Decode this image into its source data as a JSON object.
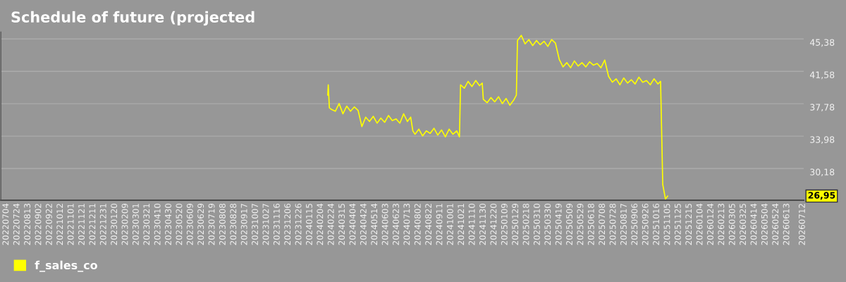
{
  "chart_data": {
    "type": "line",
    "title": "Schedule of future (projected",
    "xlim": [
      "2022-06-24",
      "2026-07-14"
    ],
    "ylim": [
      26.46,
      46.21
    ],
    "yticks": [
      {
        "value": 30.18,
        "label": "30,18"
      },
      {
        "value": 33.98,
        "label": "33,98"
      },
      {
        "value": 37.78,
        "label": "37,78"
      },
      {
        "value": 41.58,
        "label": "41,58"
      },
      {
        "value": 45.38,
        "label": "45,38"
      }
    ],
    "xticks": [
      {
        "value": "2022-07-04",
        "label": "20220704"
      },
      {
        "value": "2022-07-24",
        "label": "20220724"
      },
      {
        "value": "2022-08-13",
        "label": "20220813"
      },
      {
        "value": "2022-09-02",
        "label": "20220902"
      },
      {
        "value": "2022-09-22",
        "label": "20220922"
      },
      {
        "value": "2022-10-12",
        "label": "20221012"
      },
      {
        "value": "2022-11-01",
        "label": "20221101"
      },
      {
        "value": "2022-11-21",
        "label": "20221121"
      },
      {
        "value": "2022-12-11",
        "label": "20221211"
      },
      {
        "value": "2022-12-31",
        "label": "20221231"
      },
      {
        "value": "2023-01-20",
        "label": "20230120"
      },
      {
        "value": "2023-02-09",
        "label": "20230209"
      },
      {
        "value": "2023-03-01",
        "label": "20230301"
      },
      {
        "value": "2023-03-21",
        "label": "20230321"
      },
      {
        "value": "2023-04-10",
        "label": "20230410"
      },
      {
        "value": "2023-04-30",
        "label": "20230430"
      },
      {
        "value": "2023-05-20",
        "label": "20230520"
      },
      {
        "value": "2023-06-09",
        "label": "20230609"
      },
      {
        "value": "2023-06-29",
        "label": "20230629"
      },
      {
        "value": "2023-07-19",
        "label": "20230719"
      },
      {
        "value": "2023-08-08",
        "label": "20230808"
      },
      {
        "value": "2023-08-28",
        "label": "20230828"
      },
      {
        "value": "2023-09-17",
        "label": "20230917"
      },
      {
        "value": "2023-10-07",
        "label": "20231007"
      },
      {
        "value": "2023-10-27",
        "label": "20231027"
      },
      {
        "value": "2023-11-16",
        "label": "20231116"
      },
      {
        "value": "2023-12-06",
        "label": "20231206"
      },
      {
        "value": "2023-12-26",
        "label": "20231226"
      },
      {
        "value": "2024-01-15",
        "label": "20240115"
      },
      {
        "value": "2024-02-04",
        "label": "20240204"
      },
      {
        "value": "2024-02-24",
        "label": "20240224"
      },
      {
        "value": "2024-03-15",
        "label": "20240315"
      },
      {
        "value": "2024-04-04",
        "label": "20240404"
      },
      {
        "value": "2024-04-24",
        "label": "20240424"
      },
      {
        "value": "2024-05-14",
        "label": "20240514"
      },
      {
        "value": "2024-06-03",
        "label": "20240603"
      },
      {
        "value": "2024-06-23",
        "label": "20240623"
      },
      {
        "value": "2024-07-13",
        "label": "20240713"
      },
      {
        "value": "2024-08-02",
        "label": "20240802"
      },
      {
        "value": "2024-08-22",
        "label": "20240822"
      },
      {
        "value": "2024-09-11",
        "label": "20240911"
      },
      {
        "value": "2024-10-01",
        "label": "20241001"
      },
      {
        "value": "2024-10-21",
        "label": "20241021"
      },
      {
        "value": "2024-11-10",
        "label": "20241110"
      },
      {
        "value": "2024-11-30",
        "label": "20241130"
      },
      {
        "value": "2024-12-20",
        "label": "20241220"
      },
      {
        "value": "2025-01-09",
        "label": "20250109"
      },
      {
        "value": "2025-01-29",
        "label": "20250129"
      },
      {
        "value": "2025-02-18",
        "label": "20250218"
      },
      {
        "value": "2025-03-10",
        "label": "20250310"
      },
      {
        "value": "2025-03-30",
        "label": "20250330"
      },
      {
        "value": "2025-04-19",
        "label": "20250419"
      },
      {
        "value": "2025-05-09",
        "label": "20250509"
      },
      {
        "value": "2025-05-29",
        "label": "20250529"
      },
      {
        "value": "2025-06-18",
        "label": "20250618"
      },
      {
        "value": "2025-07-08",
        "label": "20250708"
      },
      {
        "value": "2025-07-28",
        "label": "20250728"
      },
      {
        "value": "2025-08-17",
        "label": "20250817"
      },
      {
        "value": "2025-09-06",
        "label": "20250906"
      },
      {
        "value": "2025-09-26",
        "label": "20250926"
      },
      {
        "value": "2025-10-16",
        "label": "20251016"
      },
      {
        "value": "2025-11-05",
        "label": "20251105"
      },
      {
        "value": "2025-11-25",
        "label": "20251125"
      },
      {
        "value": "2025-12-15",
        "label": "20251215"
      },
      {
        "value": "2026-01-04",
        "label": "20260104"
      },
      {
        "value": "2026-01-24",
        "label": "20260124"
      },
      {
        "value": "2026-02-13",
        "label": "20260213"
      },
      {
        "value": "2026-03-05",
        "label": "20260305"
      },
      {
        "value": "2026-03-25",
        "label": "20260325"
      },
      {
        "value": "2026-04-14",
        "label": "20260414"
      },
      {
        "value": "2026-05-04",
        "label": "20260504"
      },
      {
        "value": "2026-05-24",
        "label": "20260524"
      },
      {
        "value": "2026-06-13",
        "label": "20260613"
      },
      {
        "value": "2026-07-12",
        "label": "20260712"
      }
    ],
    "grid": "y",
    "legend": "bottom left",
    "annotations": [
      "26,95"
    ],
    "series": [
      {
        "name": "f_sales_co",
        "color": "#ffff00",
        "x": [
          "2024-02-17",
          "2024-02-18",
          "2024-02-20",
          "2024-02-24",
          "2024-03-02",
          "2024-03-09",
          "2024-03-16",
          "2024-03-23",
          "2024-03-30",
          "2024-04-06",
          "2024-04-13",
          "2024-04-20",
          "2024-04-27",
          "2024-05-04",
          "2024-05-11",
          "2024-05-18",
          "2024-05-25",
          "2024-06-01",
          "2024-06-08",
          "2024-06-15",
          "2024-06-22",
          "2024-06-29",
          "2024-07-06",
          "2024-07-13",
          "2024-07-19",
          "2024-07-23",
          "2024-07-27",
          "2024-08-03",
          "2024-08-10",
          "2024-08-17",
          "2024-08-24",
          "2024-08-31",
          "2024-09-07",
          "2024-09-14",
          "2024-09-21",
          "2024-09-28",
          "2024-10-05",
          "2024-10-12",
          "2024-10-17",
          "2024-10-19",
          "2024-10-26",
          "2024-11-02",
          "2024-11-09",
          "2024-11-16",
          "2024-11-23",
          "2024-11-28",
          "2024-11-30",
          "2024-12-07",
          "2024-12-14",
          "2024-12-21",
          "2024-12-28",
          "2025-01-04",
          "2025-01-11",
          "2025-01-18",
          "2025-01-25",
          "2025-01-30",
          "2025-02-01",
          "2025-02-08",
          "2025-02-15",
          "2025-02-22",
          "2025-03-01",
          "2025-03-08",
          "2025-03-15",
          "2025-03-22",
          "2025-03-29",
          "2025-04-05",
          "2025-04-12",
          "2025-04-19",
          "2025-04-26",
          "2025-05-03",
          "2025-05-10",
          "2025-05-17",
          "2025-05-24",
          "2025-05-31",
          "2025-06-07",
          "2025-06-14",
          "2025-06-21",
          "2025-06-28",
          "2025-07-05",
          "2025-07-12",
          "2025-07-19",
          "2025-07-26",
          "2025-08-02",
          "2025-08-09",
          "2025-08-16",
          "2025-08-23",
          "2025-08-30",
          "2025-09-06",
          "2025-09-13",
          "2025-09-20",
          "2025-09-27",
          "2025-10-04",
          "2025-10-11",
          "2025-10-18",
          "2025-10-23",
          "2025-10-27",
          "2025-11-01",
          "2025-11-05"
        ],
        "values": [
          38.8,
          40.0,
          37.3,
          37.1,
          36.9,
          37.8,
          36.6,
          37.5,
          36.9,
          37.4,
          37.0,
          35.1,
          36.2,
          35.7,
          36.3,
          35.5,
          36.1,
          35.6,
          36.4,
          35.8,
          36.0,
          35.5,
          36.6,
          35.7,
          36.2,
          34.6,
          34.2,
          34.8,
          34.0,
          34.6,
          34.3,
          34.9,
          34.1,
          34.7,
          33.9,
          34.8,
          34.2,
          34.6,
          33.9,
          40.0,
          39.6,
          40.4,
          39.8,
          40.5,
          39.9,
          40.2,
          38.3,
          37.9,
          38.5,
          38.0,
          38.6,
          37.8,
          38.4,
          37.6,
          38.2,
          38.8,
          45.2,
          45.8,
          44.8,
          45.3,
          44.6,
          45.2,
          44.7,
          45.1,
          44.5,
          45.3,
          44.9,
          43.0,
          42.1,
          42.6,
          42.0,
          42.8,
          42.2,
          42.6,
          42.1,
          42.7,
          42.3,
          42.5,
          42.0,
          42.9,
          41.0,
          40.3,
          40.7,
          40.0,
          40.8,
          40.2,
          40.6,
          40.1,
          40.9,
          40.3,
          40.5,
          40.0,
          40.7,
          40.1,
          40.4,
          28.3,
          26.6,
          26.95
        ]
      }
    ]
  }
}
